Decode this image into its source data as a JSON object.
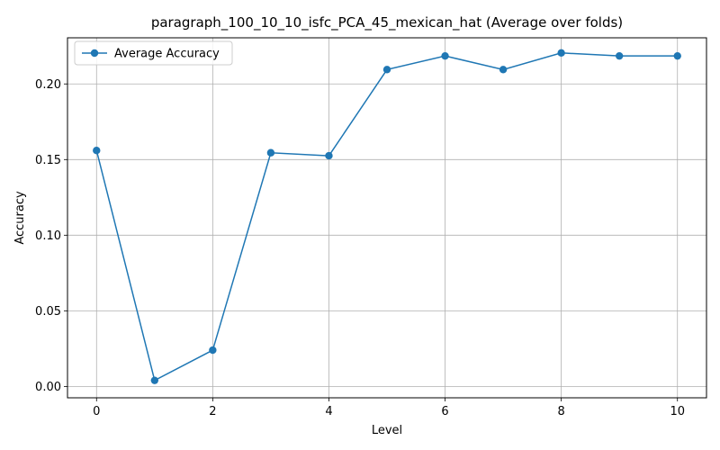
{
  "chart_data": {
    "type": "line",
    "title": "paragraph_100_10_10_isfc_PCA_45_mexican_hat (Average over folds)",
    "xlabel": "Level",
    "ylabel": "Accuracy",
    "xlim": [
      -0.5,
      10.5
    ],
    "ylim": [
      -0.0075,
      0.2305
    ],
    "xticks": [
      0,
      2,
      4,
      6,
      8,
      10
    ],
    "xtick_labels": [
      "0",
      "2",
      "4",
      "6",
      "8",
      "10"
    ],
    "yticks": [
      0.0,
      0.05,
      0.1,
      0.15,
      0.2
    ],
    "ytick_labels": [
      "0.00",
      "0.05",
      "0.10",
      "0.15",
      "0.20"
    ],
    "grid": true,
    "legend_position": "top-left",
    "series": [
      {
        "name": "Average Accuracy",
        "color": "#1f77b4",
        "marker": "circle",
        "x": [
          0,
          1,
          2,
          3,
          4,
          5,
          6,
          7,
          8,
          9,
          10
        ],
        "y": [
          0.156,
          0.004,
          0.024,
          0.1545,
          0.1525,
          0.2095,
          0.2185,
          0.2095,
          0.2205,
          0.2185,
          0.2185
        ]
      }
    ]
  }
}
